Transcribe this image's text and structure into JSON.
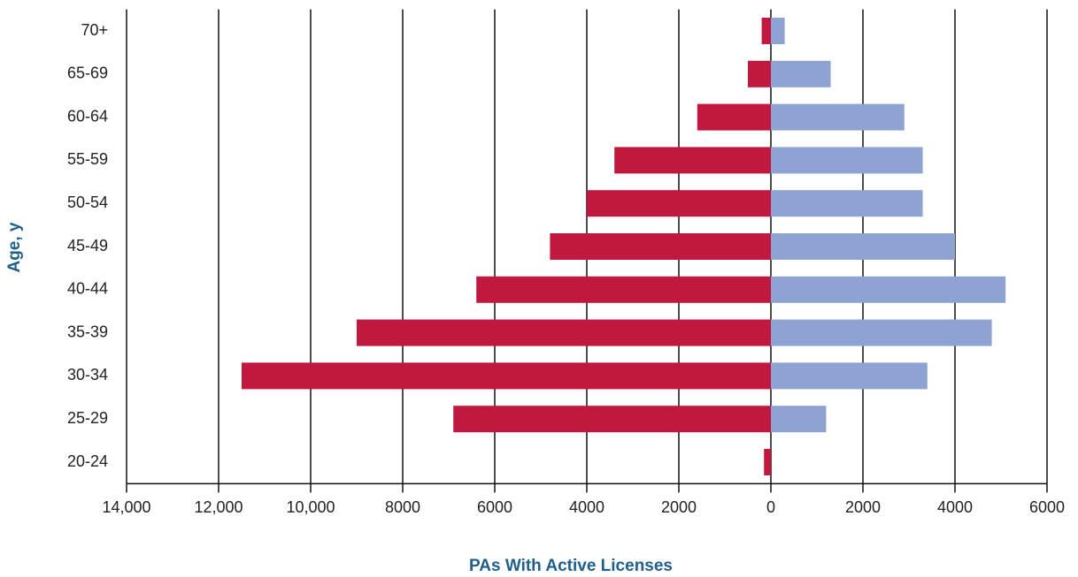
{
  "chart_data": {
    "type": "pyramid",
    "x_label": "PAs With Active Licenses",
    "y_label": "Age, y",
    "categories": [
      "20-24",
      "25-29",
      "30-34",
      "35-39",
      "40-44",
      "45-49",
      "50-54",
      "55-59",
      "60-64",
      "65-69",
      "70+"
    ],
    "series": [
      {
        "color": "#c0183f",
        "values": [
          -150,
          -6900,
          -11500,
          -9000,
          -6400,
          -4800,
          -4000,
          -3400,
          -1600,
          -500,
          -200
        ]
      },
      {
        "color": "#8fa3d3",
        "values": [
          0,
          1200,
          3400,
          4800,
          5100,
          4000,
          3300,
          3300,
          2900,
          1300,
          300
        ]
      }
    ],
    "xlim": [
      -14000,
      6000
    ],
    "xticks": [
      {
        "value": -14000,
        "label": "14,000"
      },
      {
        "value": -12000,
        "label": "12,000"
      },
      {
        "value": -10000,
        "label": "10,000"
      },
      {
        "value": -8000,
        "label": "8000"
      },
      {
        "value": -6000,
        "label": "6000"
      },
      {
        "value": -4000,
        "label": "4000"
      },
      {
        "value": -2000,
        "label": "2000"
      },
      0,
      2000,
      4000,
      6000
    ],
    "grid": true
  }
}
